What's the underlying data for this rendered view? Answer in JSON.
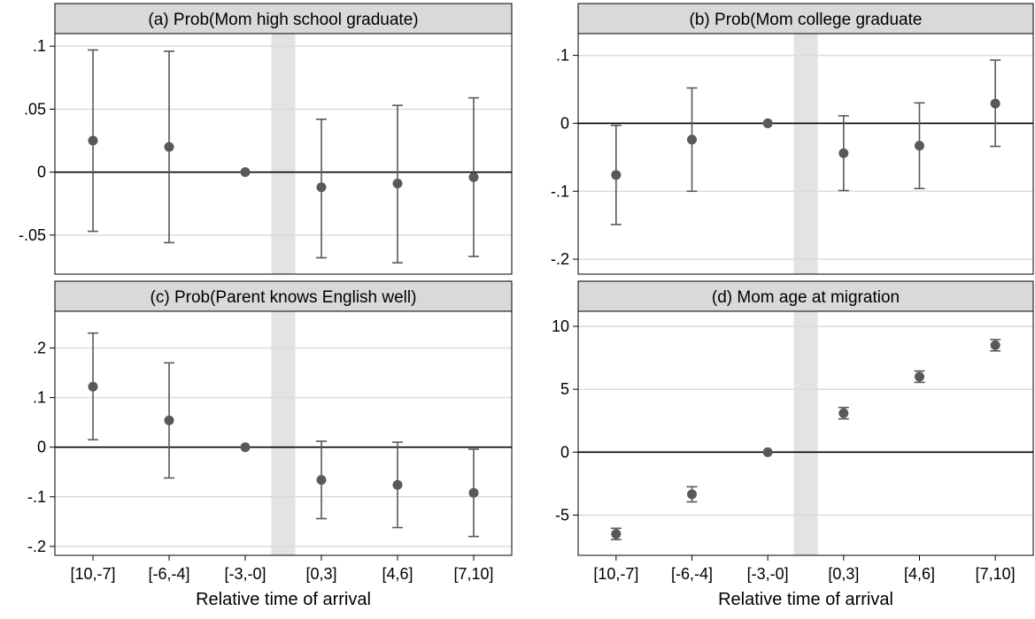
{
  "xlabel": "Relative time of arrival",
  "categories": [
    "[10,-7]",
    "[-6,-4]",
    "[-3,-0]",
    "[0,3]",
    "[4,6]",
    "[7,10]"
  ],
  "colors": {
    "marker": "#595959",
    "title_bg": "#d9d9d9",
    "gridline": "#dcdcdc",
    "shaded_band": "#e3e3e3",
    "zero_line": "#000000"
  },
  "chart_data": [
    {
      "type": "scatter",
      "title": "(a) Prob(Mom high school graduate)",
      "categories": [
        "[10,-7]",
        "[-6,-4]",
        "[-3,-0]",
        "[0,3]",
        "[4,6]",
        "[7,10]"
      ],
      "values": [
        0.025,
        0.02,
        0.0,
        -0.012,
        -0.009,
        -0.004
      ],
      "ci_low": [
        -0.047,
        -0.056,
        0.0,
        -0.068,
        -0.072,
        -0.067
      ],
      "ci_high": [
        0.097,
        0.096,
        0.0,
        0.042,
        0.053,
        0.059
      ],
      "ylim": [
        -0.081,
        0.11
      ],
      "yticks": [
        -0.05,
        0,
        0.05,
        0.1
      ],
      "ytick_labels": [
        "-.05",
        "0",
        ".05",
        ".1"
      ],
      "grid": true,
      "shaded_region": "between [-3,-0] and [0,3]"
    },
    {
      "type": "scatter",
      "title": "(b) Prob(Mom college graduate",
      "categories": [
        "[10,-7]",
        "[-6,-4]",
        "[-3,-0]",
        "[0,3]",
        "[4,6]",
        "[7,10]"
      ],
      "values": [
        -0.076,
        -0.024,
        0.0,
        -0.044,
        -0.033,
        0.029
      ],
      "ci_low": [
        -0.149,
        -0.1,
        0.0,
        -0.099,
        -0.096,
        -0.034
      ],
      "ci_high": [
        -0.003,
        0.052,
        0.0,
        0.011,
        0.03,
        0.093
      ],
      "ylim": [
        -0.222,
        0.132
      ],
      "yticks": [
        -0.2,
        -0.1,
        0,
        0.1
      ],
      "ytick_labels": [
        "-.2",
        "-.1",
        "0",
        ".1"
      ],
      "grid": true,
      "shaded_region": "between [-3,-0] and [0,3]"
    },
    {
      "type": "scatter",
      "title": "(c) Prob(Parent knows English well)",
      "categories": [
        "[10,-7]",
        "[-6,-4]",
        "[-3,-0]",
        "[0,3]",
        "[4,6]",
        "[7,10]"
      ],
      "values": [
        0.122,
        0.054,
        0.0,
        -0.066,
        -0.076,
        -0.092
      ],
      "ci_low": [
        0.015,
        -0.062,
        0.0,
        -0.144,
        -0.162,
        -0.18
      ],
      "ci_high": [
        0.23,
        0.17,
        0.0,
        0.012,
        0.01,
        -0.004
      ],
      "ylim": [
        -0.218,
        0.274
      ],
      "yticks": [
        -0.2,
        -0.1,
        0,
        0.1,
        0.2
      ],
      "ytick_labels": [
        "-.2",
        "-.1",
        "0",
        ".1",
        ".2"
      ],
      "grid": true,
      "shaded_region": "between [-3,-0] and [0,3]"
    },
    {
      "type": "scatter",
      "title": "(d) Mom age at migration",
      "categories": [
        "[10,-7]",
        "[-6,-4]",
        "[-3,-0]",
        "[0,3]",
        "[4,6]",
        "[7,10]"
      ],
      "values": [
        -6.5,
        -3.35,
        0.0,
        3.1,
        6.0,
        8.5
      ],
      "ci_low": [
        -6.95,
        -3.95,
        0.0,
        2.65,
        5.55,
        8.05
      ],
      "ci_high": [
        -6.05,
        -2.75,
        0.0,
        3.55,
        6.45,
        8.95
      ],
      "ylim": [
        -8.2,
        11.2
      ],
      "yticks": [
        -5,
        0,
        5,
        10
      ],
      "ytick_labels": [
        "-5",
        "0",
        "5",
        "10"
      ],
      "grid": true,
      "shaded_region": "between [-3,-0] and [0,3]"
    }
  ]
}
